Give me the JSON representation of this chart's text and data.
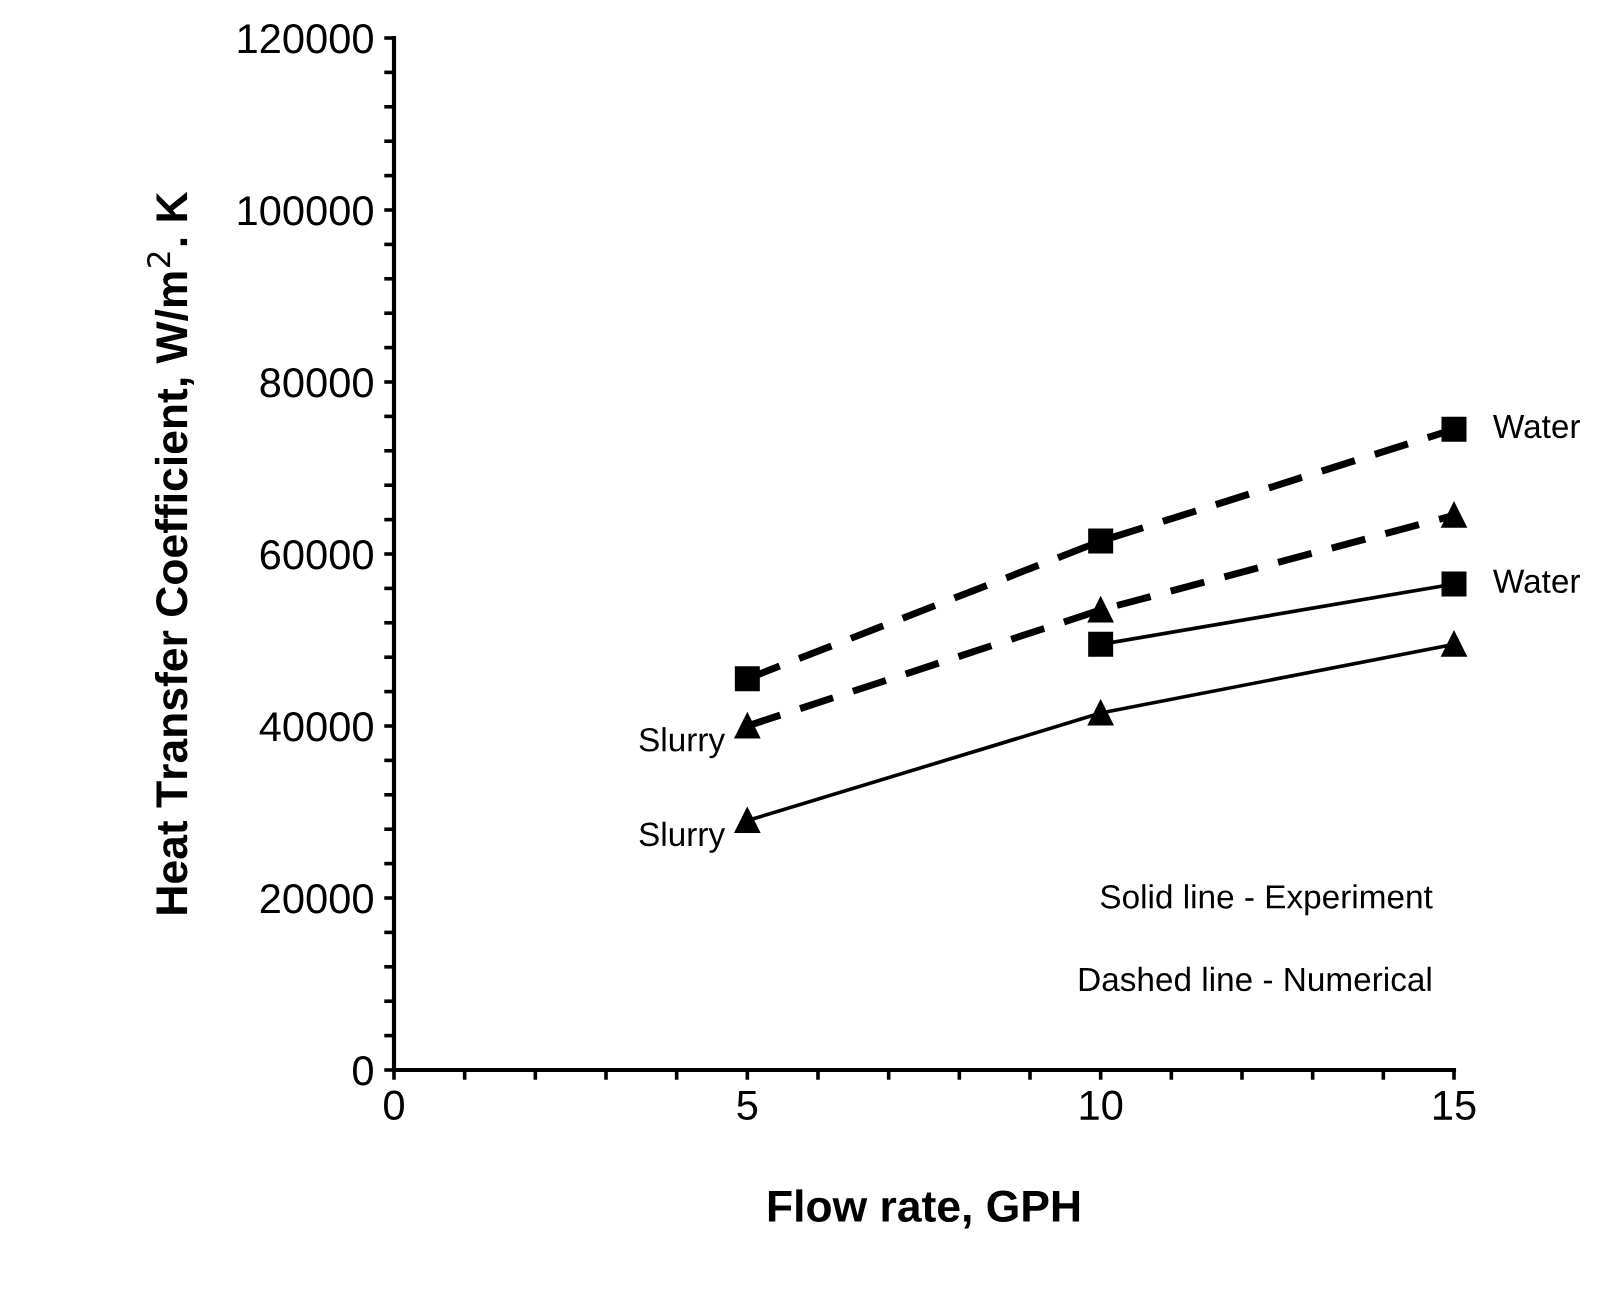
{
  "chart_data": {
    "type": "line",
    "xlabel": "Flow rate, GPH",
    "ylabel": "Heat Transfer Coefficient, W/m$^{2}$. K",
    "xlim": [
      0,
      15
    ],
    "ylim": [
      0,
      120000
    ],
    "xticks": [
      0,
      {
        "value": 1,
        "label": null
      },
      {
        "value": 2,
        "label": null
      },
      {
        "value": 3,
        "label": null
      },
      {
        "value": 4,
        "label": null
      },
      5,
      {
        "value": 6,
        "label": null
      },
      {
        "value": 7,
        "label": null
      },
      {
        "value": 8,
        "label": null
      },
      {
        "value": 9,
        "label": null
      },
      10,
      {
        "value": 11,
        "label": null
      },
      {
        "value": 12,
        "label": null
      },
      {
        "value": 13,
        "label": null
      },
      {
        "value": 14,
        "label": null
      },
      15
    ],
    "yticks": [
      0,
      {
        "value": 4000,
        "label": null
      },
      {
        "value": 8000,
        "label": null
      },
      {
        "value": 12000,
        "label": null
      },
      {
        "value": 16000,
        "label": null
      },
      20000,
      {
        "value": 24000,
        "label": null
      },
      {
        "value": 28000,
        "label": null
      },
      {
        "value": 32000,
        "label": null
      },
      {
        "value": 36000,
        "label": null
      },
      40000,
      {
        "value": 44000,
        "label": null
      },
      {
        "value": 48000,
        "label": null
      },
      {
        "value": 52000,
        "label": null
      },
      {
        "value": 56000,
        "label": null
      },
      60000,
      {
        "value": 64000,
        "label": null
      },
      {
        "value": 68000,
        "label": null
      },
      {
        "value": 72000,
        "label": null
      },
      {
        "value": 76000,
        "label": null
      },
      80000,
      {
        "value": 84000,
        "label": null
      },
      {
        "value": 88000,
        "label": null
      },
      {
        "value": 92000,
        "label": null
      },
      {
        "value": 96000,
        "label": null
      },
      100000,
      {
        "value": 104000,
        "label": null
      },
      {
        "value": 108000,
        "label": null
      },
      {
        "value": 112000,
        "label": null
      },
      {
        "value": 116000,
        "label": null
      },
      120000
    ],
    "grid": false,
    "legend": false,
    "series": [
      {
        "name": "Water",
        "color": "#000000",
        "x": [
          5,
          10,
          15
        ],
        "values": [
          45500,
          61500,
          74500
        ],
        "marker": "square",
        "line_style": "dashed"
      },
      {
        "name": "Slurry",
        "color": "#000000",
        "x": [
          5,
          10,
          15
        ],
        "values": [
          40000,
          53500,
          64500
        ],
        "marker": "triangle",
        "line_style": "dashed"
      },
      {
        "name": "Water",
        "color": "#000000",
        "x": [
          10,
          15
        ],
        "values": [
          49500,
          56500
        ],
        "marker": "square",
        "line_style": "solid"
      },
      {
        "name": "Slurry",
        "color": "#000000",
        "x": [
          5,
          10,
          15
        ],
        "values": [
          29000,
          41500,
          49500
        ],
        "marker": "triangle",
        "line_style": "solid"
      }
    ],
    "annotations": [
      "Solid line - Experiment",
      "Dashed line - Numerical"
    ]
  }
}
